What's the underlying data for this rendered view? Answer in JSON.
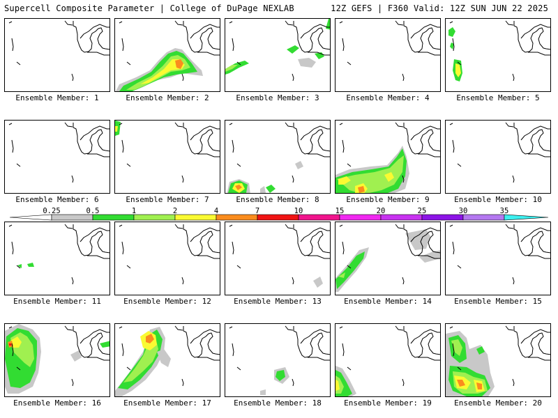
{
  "header": {
    "title_left": "Supercell Composite Parameter | College of DuPage NEXLAB",
    "title_right": "12Z GEFS | F360 Valid: 12Z SUN JUN 22 2025"
  },
  "member_label_prefix": "Ensemble Member: ",
  "members": [
    1,
    2,
    3,
    4,
    5,
    6,
    7,
    8,
    9,
    10,
    11,
    12,
    13,
    14,
    15,
    16,
    17,
    18,
    19,
    20
  ],
  "colorbar": {
    "thresholds": [
      "0.25",
      "0.5",
      "1",
      "2",
      "4",
      "7",
      "10",
      "15",
      "20",
      "25",
      "30",
      "35"
    ],
    "colors": [
      "#ffffff",
      "#c8c8c8",
      "#32dc32",
      "#a0f050",
      "#fafa32",
      "#fa8c1e",
      "#f01414",
      "#f0148c",
      "#f028f0",
      "#c832f0",
      "#8c14e6",
      "#b478f0",
      "#3cf0f0"
    ]
  }
}
